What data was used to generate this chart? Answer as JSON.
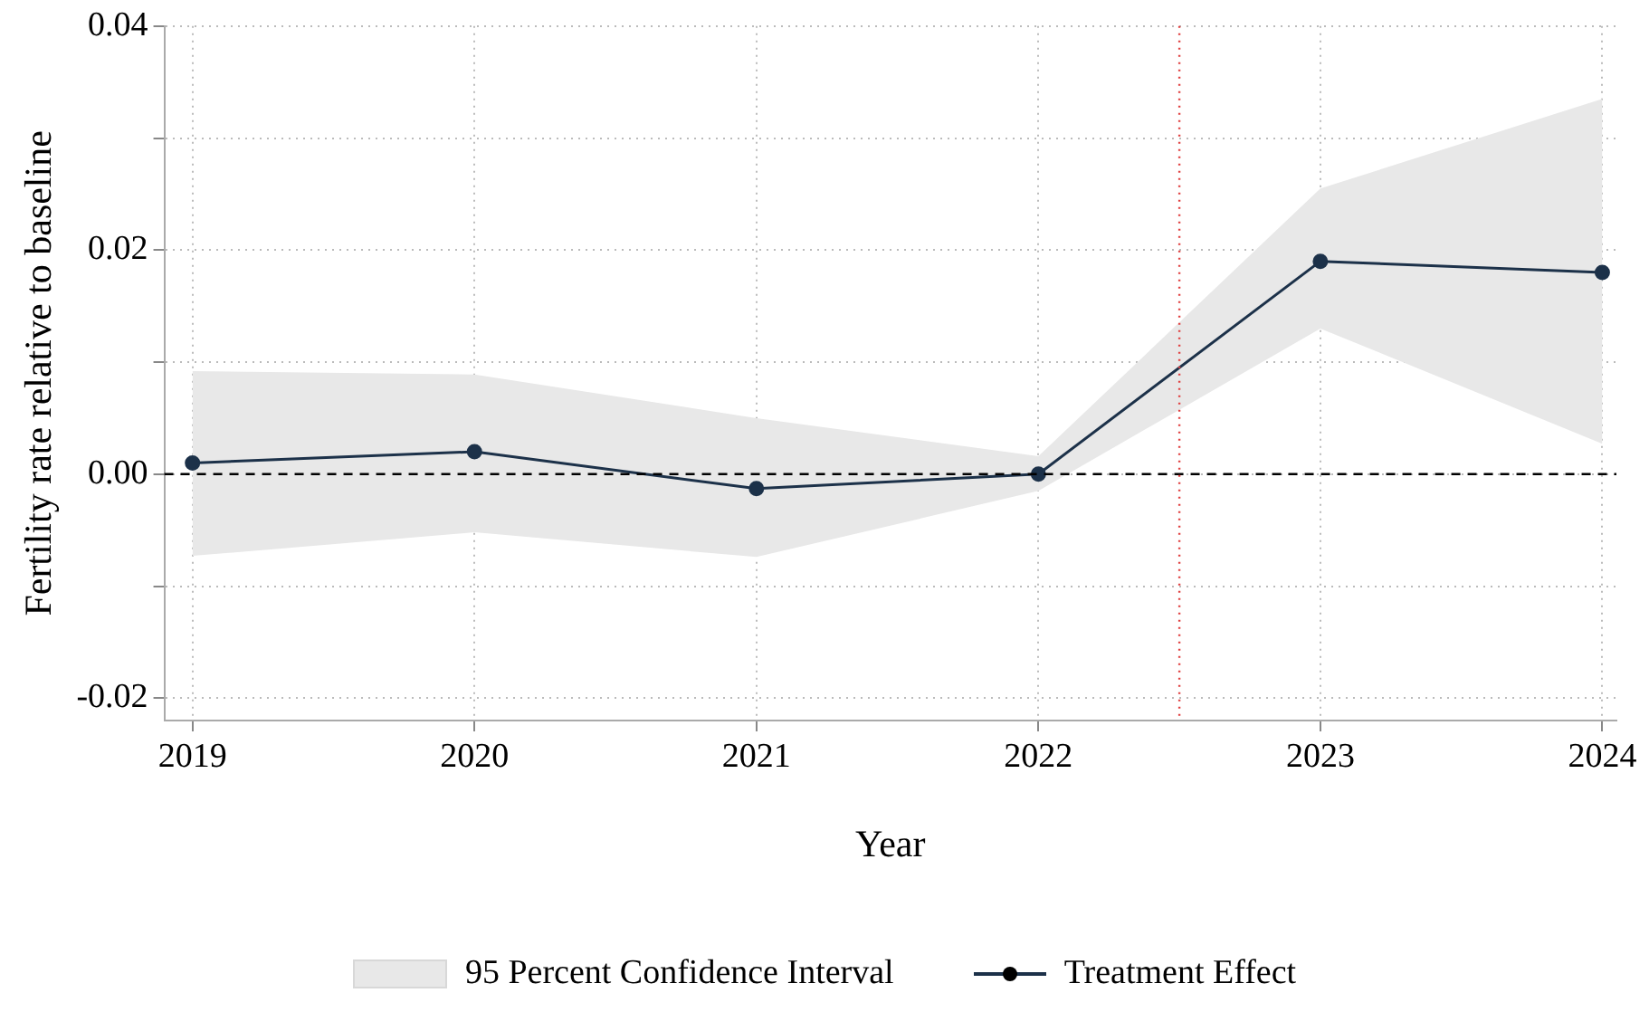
{
  "chart_data": {
    "type": "line",
    "xlabel": "Year",
    "ylabel": "Fertility rate relative to baseline",
    "x": [
      2019,
      2020,
      2021,
      2022,
      2023,
      2024
    ],
    "series": [
      {
        "name": "Treatment Effect",
        "color": "#1c3149",
        "values": [
          0.001,
          0.002,
          -0.0013,
          0,
          0.019,
          0.018
        ],
        "lower": [
          -0.0073,
          -0.0052,
          -0.0074,
          -0.0015,
          0.013,
          0.0027
        ],
        "upper": [
          0.0092,
          0.0089,
          0.005,
          0.0016,
          0.0255,
          0.0335
        ]
      }
    ],
    "annotations": [
      "95 Percent Confidence Interval"
    ],
    "xlim": [
      2018.9,
      2024.05
    ],
    "xticks": [
      2019,
      2020,
      2021,
      2022,
      2023,
      2024
    ],
    "ylim": [
      -0.022,
      0.04
    ],
    "yticks": [
      {
        "value": -0.02,
        "label": "-0.02"
      },
      {
        "value": -0.01,
        "label": null
      },
      {
        "value": 0,
        "label": "0.00"
      },
      {
        "value": 0.01,
        "label": null
      },
      {
        "value": 0.02,
        "label": "0.02"
      },
      {
        "value": 0.03,
        "label": null
      },
      {
        "value": 0.04,
        "label": "0.04"
      }
    ],
    "ref_lines": [
      {
        "axis": "y",
        "value": 0,
        "color": "#000000",
        "line_style": "dashed"
      },
      {
        "axis": "x",
        "value": 2022.5,
        "color": "#e04040",
        "line_style": "dotted"
      }
    ],
    "grid": true,
    "legend": "bottom",
    "marker": "circle",
    "line_style": "solid"
  }
}
